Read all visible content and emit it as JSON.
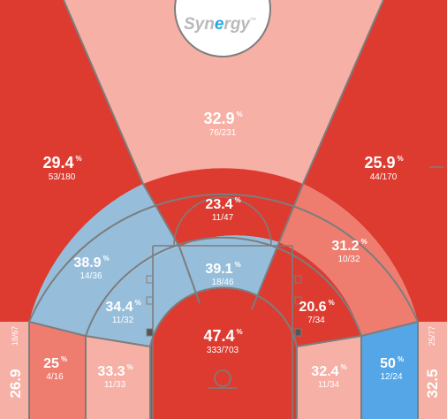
{
  "colors": {
    "hot": "#dd3b30",
    "warm": "#ee7d70",
    "light": "#f6b0a5",
    "cool": "#96bedb",
    "cold": "#54a6e6",
    "line": "#7d7d7d",
    "logo_accent": "#23a6e8"
  },
  "logo": {
    "text_left": "Syn",
    "text_mid": "e",
    "text_right": "rgy",
    "mark": "™"
  },
  "chart_data": {
    "type": "heatmap",
    "subject": "basketball shot chart, field goal percentage by court zone",
    "zones": [
      {
        "id": "left-corner-3",
        "pct": "26.9",
        "frac": "18/67",
        "color": "light"
      },
      {
        "id": "left-wing-3",
        "pct": "29.4",
        "frac": "53/180",
        "color": "hot"
      },
      {
        "id": "top-key-3",
        "pct": "32.9",
        "frac": "76/231",
        "color": "light"
      },
      {
        "id": "right-wing-3",
        "pct": "25.9",
        "frac": "44/170",
        "color": "hot"
      },
      {
        "id": "right-corner-3",
        "pct": "32.5",
        "frac": "25/77",
        "color": "light"
      },
      {
        "id": "left-baseline-2",
        "pct": "25",
        "frac": "4/16",
        "color": "warm"
      },
      {
        "id": "left-elbow-long",
        "pct": "38.9",
        "frac": "14/36",
        "color": "cool"
      },
      {
        "id": "top-long-2",
        "pct": "23.4",
        "frac": "11/47",
        "color": "hot"
      },
      {
        "id": "right-elbow-long",
        "pct": "31.2",
        "frac": "10/32",
        "color": "warm"
      },
      {
        "id": "right-baseline-2",
        "pct": "50",
        "frac": "12/24",
        "color": "cold"
      },
      {
        "id": "left-short-base",
        "pct": "33.3",
        "frac": "11/33",
        "color": "light"
      },
      {
        "id": "left-short-wing",
        "pct": "34.4",
        "frac": "11/32",
        "color": "cool"
      },
      {
        "id": "paint-top",
        "pct": "39.1",
        "frac": "18/46",
        "color": "cool"
      },
      {
        "id": "right-short-wing",
        "pct": "20.6",
        "frac": "7/34",
        "color": "hot"
      },
      {
        "id": "right-short-base",
        "pct": "32.4",
        "frac": "11/34",
        "color": "light"
      },
      {
        "id": "restricted-area",
        "pct": "47.4",
        "frac": "333/703",
        "color": "hot"
      }
    ],
    "pct_unit": "%"
  }
}
